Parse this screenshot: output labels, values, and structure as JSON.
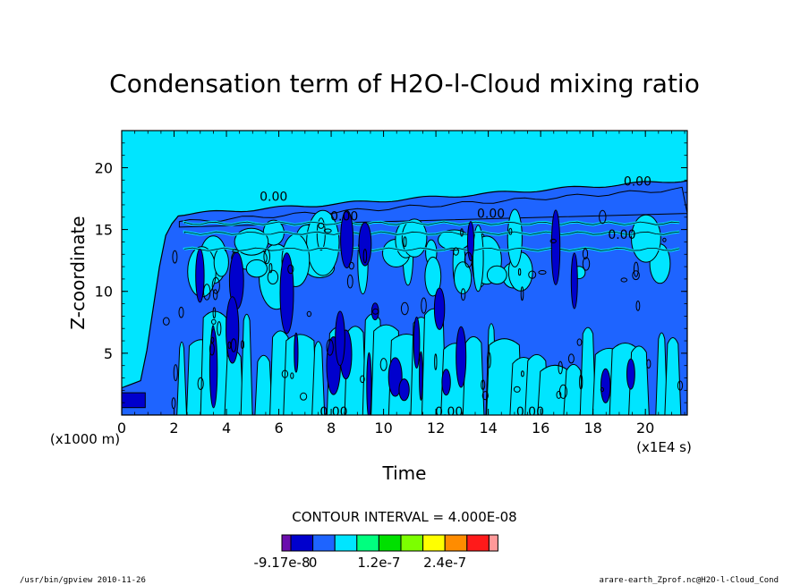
{
  "chart_data": {
    "type": "heatmap",
    "title": "Condensation term of H2O-l-Cloud mixing ratio",
    "xlabel": "Time",
    "ylabel": "Z-coordinate",
    "x_unit": "(x1E4 s)",
    "y_unit": "(x1000 m)",
    "xlim": [
      0,
      21.6
    ],
    "ylim": [
      0,
      23
    ],
    "x_ticks": [
      "0",
      "2",
      "4",
      "6",
      "8",
      "10",
      "12",
      "14",
      "16",
      "18",
      "20"
    ],
    "y_ticks": [
      "5",
      "10",
      "15",
      "20"
    ],
    "contour_interval_text": "CONTOUR INTERVAL = 4.000E-08",
    "colorbar": {
      "colors": [
        "#6a0dad",
        "#0000cd",
        "#1e64ff",
        "#00e5ff",
        "#00ff7f",
        "#00e000",
        "#7cff00",
        "#ffff00",
        "#ff8c00",
        "#ff1a1a",
        "#ff9999"
      ],
      "labels": [
        "-9.17e-8",
        "0",
        "1.2e-7",
        "2.4e-7"
      ]
    },
    "contour_labels": [
      {
        "x": 5.8,
        "y": 17.7,
        "text": "0.00"
      },
      {
        "x": 8.5,
        "y": 16.1,
        "text": "0.00"
      },
      {
        "x": 14.1,
        "y": 16.3,
        "text": "0.00"
      },
      {
        "x": 19.1,
        "y": 14.6,
        "text": "0.00"
      },
      {
        "x": 19.7,
        "y": 18.9,
        "text": "0.00"
      },
      {
        "x": 8.1,
        "y": 0.3,
        "text": "0.00"
      },
      {
        "x": 12.5,
        "y": 0.3,
        "text": "0.00"
      },
      {
        "x": 15.6,
        "y": 0.3,
        "text": "0.00"
      }
    ],
    "footer_left": "/usr/bin/gpview   2010-11-26",
    "footer_right": "arare-earth_Zprof.nc@H2O-l-Cloud_Cond"
  },
  "colors": {
    "background_level": "#00e5ff",
    "negative_light": "#1e64ff",
    "negative_dark": "#0000cd",
    "contour_line": "#000000"
  }
}
